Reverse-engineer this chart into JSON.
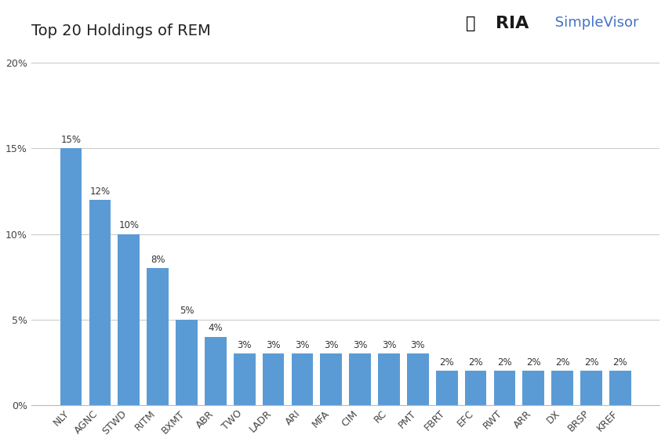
{
  "title": "Top 20 Holdings of REM",
  "categories": [
    "NLY",
    "AGNC",
    "STWD",
    "RITM",
    "BXMT",
    "ABR",
    "TWO",
    "LADR",
    "ARI",
    "MFA",
    "CIM",
    "RC",
    "PMT",
    "FBRT",
    "EFC",
    "RWT",
    "ARR",
    "DX",
    "BRSP",
    "KREF"
  ],
  "values": [
    15,
    12,
    10,
    8,
    5,
    4,
    3,
    3,
    3,
    3,
    3,
    3,
    3,
    2,
    2,
    2,
    2,
    2,
    2,
    2
  ],
  "bar_color": "#5B9BD5",
  "background_color": "#FFFFFF",
  "plot_bg_color": "#FFFFFF",
  "ylim": [
    0,
    21
  ],
  "yticks": [
    0,
    5,
    10,
    15,
    20
  ],
  "ytick_labels": [
    "0%",
    "5%",
    "10%",
    "15%",
    "20%"
  ],
  "title_fontsize": 14,
  "tick_fontsize": 9,
  "label_fontsize": 8.5,
  "grid_color": "#CCCCCC",
  "border_color": "#BBBBBB",
  "ria_text": "RIA",
  "simple_visor_text": " SimpleVisor",
  "ria_color": "#1A1A1A",
  "sv_color": "#4472C4",
  "logo_fontsize": 16,
  "sv_fontsize": 13
}
